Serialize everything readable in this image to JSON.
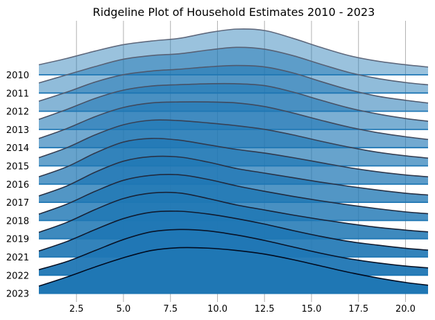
{
  "chart_data": {
    "type": "ridgeline",
    "title": "Ridgeline Plot of Household Estimates 2010 - 2023",
    "xlabel": "",
    "ylabel": "",
    "xlim": [
      0.5,
      21.2
    ],
    "xticks": [
      2.5,
      5.0,
      7.5,
      10.0,
      12.5,
      15.0,
      17.5,
      20.0
    ],
    "xtick_labels": [
      "2.5",
      "5.0",
      "7.5",
      "10.0",
      "12.5",
      "15.0",
      "17.5",
      "20.0"
    ],
    "grid": "vertical",
    "base_color": "#1f77b4",
    "categories": [
      "2010",
      "2011",
      "2012",
      "2013",
      "2014",
      "2015",
      "2016",
      "2017",
      "2018",
      "2019",
      "2021",
      "2022",
      "2023"
    ],
    "series": [
      {
        "name": "2010",
        "x": [
          0.5,
          2,
          3.5,
          5,
          6.5,
          8,
          9.5,
          11,
          12.5,
          14,
          15.5,
          17,
          18.5,
          20,
          21.2
        ],
        "values": [
          0.22,
          0.36,
          0.52,
          0.66,
          0.74,
          0.8,
          0.92,
          1.0,
          0.97,
          0.8,
          0.6,
          0.42,
          0.3,
          0.22,
          0.17
        ]
      },
      {
        "name": "2011",
        "x": [
          0.5,
          2,
          3.5,
          5,
          6.5,
          8,
          9.5,
          11,
          12.5,
          14,
          15.5,
          17,
          18.5,
          20,
          21.2
        ],
        "values": [
          0.22,
          0.4,
          0.58,
          0.74,
          0.82,
          0.86,
          0.94,
          1.0,
          0.96,
          0.82,
          0.63,
          0.45,
          0.32,
          0.23,
          0.18
        ]
      },
      {
        "name": "2012",
        "x": [
          0.5,
          2,
          3.5,
          5,
          6.5,
          8,
          9.5,
          11,
          12.5,
          14,
          15.5,
          17,
          18.5,
          20,
          21.2
        ],
        "values": [
          0.22,
          0.42,
          0.64,
          0.8,
          0.88,
          0.92,
          0.97,
          1.0,
          0.97,
          0.84,
          0.65,
          0.47,
          0.33,
          0.24,
          0.18
        ]
      },
      {
        "name": "2013",
        "x": [
          0.5,
          2,
          3.5,
          5,
          6.5,
          8,
          9.5,
          11,
          12.5,
          14,
          15.5,
          17,
          18.5,
          20,
          21.2
        ],
        "values": [
          0.22,
          0.44,
          0.68,
          0.86,
          0.95,
          0.98,
          1.0,
          1.0,
          0.96,
          0.82,
          0.64,
          0.47,
          0.34,
          0.24,
          0.18
        ]
      },
      {
        "name": "2014",
        "x": [
          0.5,
          2,
          3.5,
          5,
          6.5,
          8,
          9.5,
          11,
          12.5,
          14,
          15.5,
          17,
          18.5,
          20,
          21.2
        ],
        "values": [
          0.2,
          0.42,
          0.68,
          0.88,
          0.98,
          1.0,
          1.0,
          0.98,
          0.9,
          0.76,
          0.6,
          0.45,
          0.33,
          0.24,
          0.18
        ]
      },
      {
        "name": "2015",
        "x": [
          0.5,
          2,
          3.5,
          5,
          6.5,
          8,
          9.5,
          11,
          12.5,
          14,
          15.5,
          17,
          18.5,
          20,
          21.2
        ],
        "values": [
          0.18,
          0.4,
          0.68,
          0.9,
          1.0,
          0.99,
          0.94,
          0.88,
          0.8,
          0.68,
          0.54,
          0.41,
          0.3,
          0.22,
          0.17
        ]
      },
      {
        "name": "2016",
        "x": [
          0.5,
          2,
          3.5,
          5,
          6.5,
          8,
          9.5,
          11,
          12.5,
          14,
          15.5,
          17,
          18.5,
          20,
          21.2
        ],
        "values": [
          0.16,
          0.38,
          0.68,
          0.92,
          1.0,
          0.96,
          0.86,
          0.76,
          0.68,
          0.58,
          0.47,
          0.36,
          0.27,
          0.2,
          0.16
        ]
      },
      {
        "name": "2017",
        "x": [
          0.5,
          2,
          3.5,
          5,
          6.5,
          8,
          9.5,
          11,
          12.5,
          14,
          15.5,
          17,
          18.5,
          20,
          21.2
        ],
        "values": [
          0.14,
          0.36,
          0.66,
          0.9,
          1.0,
          0.99,
          0.88,
          0.74,
          0.64,
          0.54,
          0.44,
          0.35,
          0.27,
          0.2,
          0.16
        ]
      },
      {
        "name": "2018",
        "x": [
          0.5,
          2,
          3.5,
          5,
          6.5,
          8,
          9.5,
          11,
          12.5,
          14,
          15.5,
          17,
          18.5,
          20,
          21.2
        ],
        "values": [
          0.14,
          0.36,
          0.64,
          0.88,
          0.99,
          1.0,
          0.9,
          0.76,
          0.64,
          0.53,
          0.43,
          0.34,
          0.26,
          0.19,
          0.15
        ]
      },
      {
        "name": "2019",
        "x": [
          0.5,
          2,
          3.5,
          5,
          6.5,
          8,
          9.5,
          11,
          12.5,
          14,
          15.5,
          17,
          18.5,
          20,
          21.2
        ],
        "values": [
          0.14,
          0.36,
          0.64,
          0.88,
          1.0,
          1.0,
          0.88,
          0.74,
          0.63,
          0.52,
          0.42,
          0.33,
          0.25,
          0.19,
          0.15
        ]
      },
      {
        "name": "2021",
        "x": [
          0.5,
          2,
          3.5,
          5,
          6.5,
          8,
          9.5,
          11,
          12.5,
          14,
          15.5,
          17,
          18.5,
          20,
          21.2
        ],
        "values": [
          0.13,
          0.34,
          0.6,
          0.84,
          0.98,
          1.0,
          0.94,
          0.84,
          0.72,
          0.58,
          0.45,
          0.34,
          0.26,
          0.19,
          0.15
        ]
      },
      {
        "name": "2022",
        "x": [
          0.5,
          2,
          3.5,
          5,
          6.5,
          8,
          9.5,
          11,
          12.5,
          14,
          15.5,
          17,
          18.5,
          20,
          21.2
        ],
        "values": [
          0.12,
          0.3,
          0.54,
          0.78,
          0.95,
          1.0,
          0.97,
          0.88,
          0.76,
          0.62,
          0.48,
          0.36,
          0.27,
          0.2,
          0.16
        ]
      },
      {
        "name": "2023",
        "x": [
          0.5,
          2,
          3.5,
          5,
          6.5,
          8,
          9.5,
          11,
          12.5,
          14,
          15.5,
          17,
          18.5,
          20,
          21.2
        ],
        "values": [
          0.16,
          0.36,
          0.58,
          0.78,
          0.94,
          1.0,
          0.99,
          0.94,
          0.86,
          0.74,
          0.6,
          0.46,
          0.34,
          0.24,
          0.18
        ]
      }
    ]
  }
}
